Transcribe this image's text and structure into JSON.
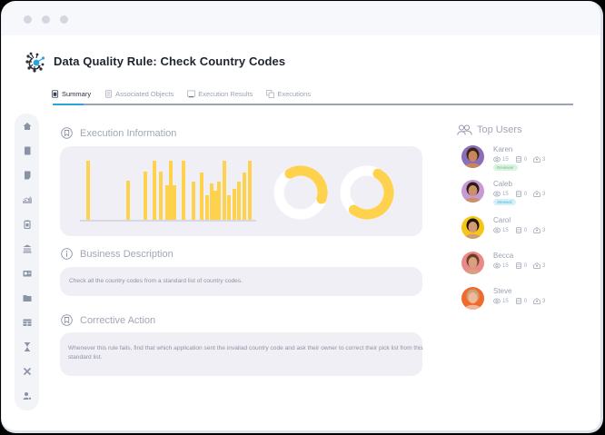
{
  "window": {
    "traffic_dots": [
      "dot",
      "dot",
      "dot"
    ]
  },
  "header": {
    "title": "Data Quality Rule: Check Country Codes",
    "logo_icon": "network-hub-logo-icon"
  },
  "tabs": [
    {
      "label": "Summary",
      "icon": "document-icon",
      "active": true
    },
    {
      "label": "Associated Objects",
      "icon": "list-icon",
      "active": false
    },
    {
      "label": "Execution Results",
      "icon": "monitor-icon",
      "active": false
    },
    {
      "label": "Executions",
      "icon": "copy-icon",
      "active": false
    }
  ],
  "sidebar": {
    "items": [
      {
        "icon": "home-icon"
      },
      {
        "icon": "book-icon"
      },
      {
        "icon": "note-icon"
      },
      {
        "icon": "chart-icon"
      },
      {
        "icon": "clipboard-icon"
      },
      {
        "icon": "bank-icon"
      },
      {
        "icon": "id-card-icon"
      },
      {
        "icon": "folder-icon"
      },
      {
        "icon": "table-icon"
      },
      {
        "icon": "hourglass-icon"
      },
      {
        "icon": "tools-icon"
      },
      {
        "icon": "user-settings-icon"
      }
    ]
  },
  "execution_information": {
    "title": "Execution Information"
  },
  "business_description": {
    "title": "Business Description",
    "text": "Check all the country codes from a standard list of country codes."
  },
  "corrective_action": {
    "title": "Corrective Action",
    "text": "Whenever this rule fails, find that which application sent the invaliad country code and ask their owner to correct their pick list from this standard list."
  },
  "top_users": {
    "title": "Top Users",
    "users": [
      {
        "name": "Karen",
        "views": "15",
        "assets": "0",
        "messages": "3",
        "badge": "Reviewer",
        "badge_bg": "#d9f3df",
        "badge_fg": "#6cc48a",
        "avatar_bg": "#8a6fb8",
        "skin": "#c8865c",
        "hair": "#3a2418"
      },
      {
        "name": "Caleb",
        "views": "15",
        "assets": "0",
        "messages": "3",
        "badge": "Steward",
        "badge_bg": "#d4f0f8",
        "badge_fg": "#4fb4d8",
        "avatar_bg": "#c79ad6",
        "skin": "#c9906a",
        "hair": "#2a1c14"
      },
      {
        "name": "Carol",
        "views": "15",
        "assets": "0",
        "messages": "3",
        "badge": "",
        "avatar_bg": "#f5c518",
        "skin": "#d49a76",
        "hair": "#1e1410"
      },
      {
        "name": "Becca",
        "views": "15",
        "assets": "0",
        "messages": "3",
        "badge": "",
        "avatar_bg": "#e98a8a",
        "skin": "#d8a07e",
        "hair": "#6b3e22"
      },
      {
        "name": "Steve",
        "views": "15",
        "assets": "0",
        "messages": "3",
        "badge": "",
        "avatar_bg": "#f06a2c",
        "skin": "#f0b89a",
        "hair": "#c9a27a"
      }
    ]
  },
  "colors": {
    "accent": "#2aa4dd",
    "bar": "#ffd24d",
    "card_bg": "#efeff5",
    "text_muted": "#9aa2b3"
  },
  "chart_data": {
    "type": "bar",
    "title": "Execution Information",
    "x": [
      95,
      139,
      158,
      168,
      175,
      182,
      186,
      190,
      200,
      211,
      220,
      226,
      231,
      235,
      239,
      245,
      250,
      256,
      261,
      267,
      273
    ],
    "values": [
      100,
      66,
      81,
      100,
      81,
      58,
      100,
      58,
      100,
      65,
      80,
      42,
      62,
      49,
      65,
      100,
      42,
      52,
      65,
      80,
      100
    ],
    "ylim": [
      0,
      100
    ],
    "xlabel": "",
    "ylabel": "",
    "grid": false,
    "donuts": [
      {
        "type": "pie",
        "filled_fraction": 0.38,
        "start_deg": -30,
        "color": "#ffd24d",
        "track": "#ffffff"
      },
      {
        "type": "pie",
        "filled_fraction": 0.52,
        "start_deg": 30,
        "color": "#ffd24d",
        "track": "#ffffff"
      }
    ]
  }
}
